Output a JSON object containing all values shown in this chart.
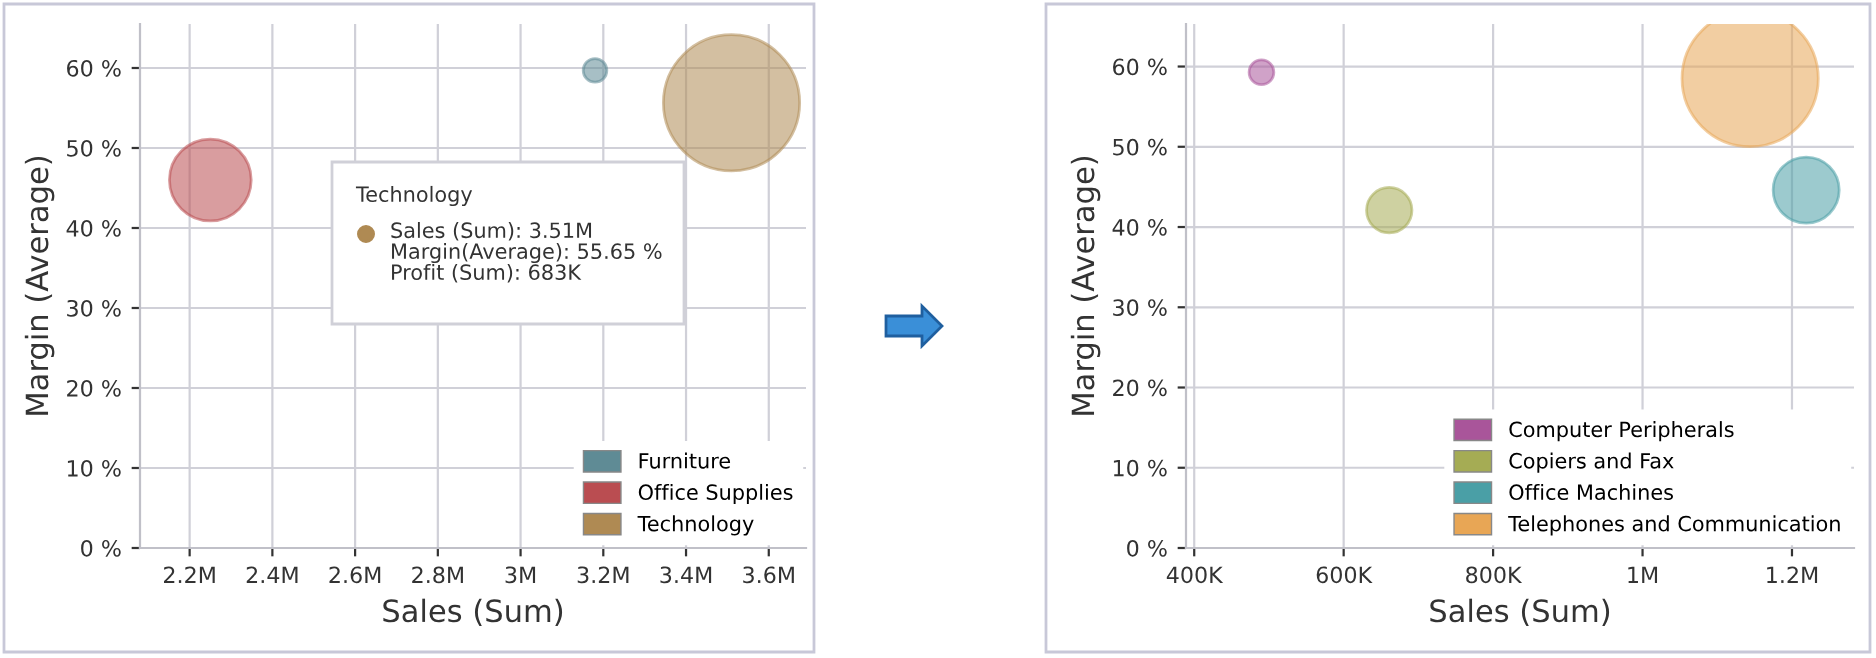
{
  "chart_data": [
    {
      "type": "bubble",
      "xlabel": "Sales (Sum)",
      "ylabel": "Margin (Average)",
      "xlim": [
        2080000,
        3690000
      ],
      "ylim": [
        0,
        65.5
      ],
      "xticks": [
        {
          "value": 2200000,
          "label": "2.2M"
        },
        {
          "value": 2400000,
          "label": "2.4M"
        },
        {
          "value": 2600000,
          "label": "2.6M"
        },
        {
          "value": 2800000,
          "label": "2.8M"
        },
        {
          "value": 3000000,
          "label": "3M"
        },
        {
          "value": 3200000,
          "label": "3.2M"
        },
        {
          "value": 3400000,
          "label": "3.4M"
        },
        {
          "value": 3600000,
          "label": "3.6M"
        }
      ],
      "yticks": [
        {
          "value": 0,
          "label": "0 %"
        },
        {
          "value": 10,
          "label": "10 %"
        },
        {
          "value": 20,
          "label": "20 %"
        },
        {
          "value": 30,
          "label": "30 %"
        },
        {
          "value": 40,
          "label": "40 %"
        },
        {
          "value": 50,
          "label": "50 %"
        },
        {
          "value": 60,
          "label": "60 %"
        }
      ],
      "grid": true,
      "legend": "bottom right",
      "series": [
        {
          "name": "Furniture",
          "color": "#5f8b95",
          "x": [
            3180000
          ],
          "values": [
            59.7
          ],
          "sizes": [
            0.03
          ]
        },
        {
          "name": "Office Supplies",
          "color": "#ba4d51",
          "x": [
            2250000
          ],
          "values": [
            46
          ],
          "sizes": [
            0.36
          ]
        },
        {
          "name": "Technology",
          "color": "#af8a53",
          "x": [
            3510000
          ],
          "values": [
            55.65
          ],
          "sizes": [
            1
          ]
        }
      ],
      "annotations": [
        "Technology",
        "Sales (Sum): 3.51M",
        "Margin(Average): 55.65 %",
        "Profit (Sum): 683K"
      ]
    },
    {
      "type": "bubble",
      "xlabel": "Sales (Sum)",
      "ylabel": "Margin (Average)",
      "xlim": [
        389000,
        1283000
      ],
      "ylim": [
        0,
        65.3
      ],
      "xticks": [
        {
          "value": 400000,
          "label": "400K"
        },
        {
          "value": 600000,
          "label": "600K"
        },
        {
          "value": 800000,
          "label": "800K"
        },
        {
          "value": 1000000,
          "label": "1M"
        },
        {
          "value": 1200000,
          "label": "1.2M"
        }
      ],
      "yticks": [
        {
          "value": 0,
          "label": "0 %"
        },
        {
          "value": 10,
          "label": "10 %"
        },
        {
          "value": 20,
          "label": "20 %"
        },
        {
          "value": 30,
          "label": "30 %"
        },
        {
          "value": 40,
          "label": "40 %"
        },
        {
          "value": 50,
          "label": "50 %"
        },
        {
          "value": 60,
          "label": "60 %"
        }
      ],
      "grid": true,
      "legend": "bottom right",
      "series": [
        {
          "name": "Computer Peripherals",
          "color": "#a9559a",
          "x": [
            490000
          ],
          "values": [
            59.3
          ],
          "sizes": [
            0.033
          ]
        },
        {
          "name": "Copiers and Fax",
          "color": "#a5ac54",
          "x": [
            661000
          ],
          "values": [
            42.1
          ],
          "sizes": [
            0.111
          ]
        },
        {
          "name": "Office Machines",
          "color": "#4a9fa6",
          "x": [
            1219000
          ],
          "values": [
            44.6
          ],
          "sizes": [
            0.235
          ]
        },
        {
          "name": "Telephones and Communication",
          "color": "#e8a655",
          "x": [
            1144000
          ],
          "values": [
            58.5
          ],
          "sizes": [
            1
          ]
        }
      ]
    }
  ]
}
